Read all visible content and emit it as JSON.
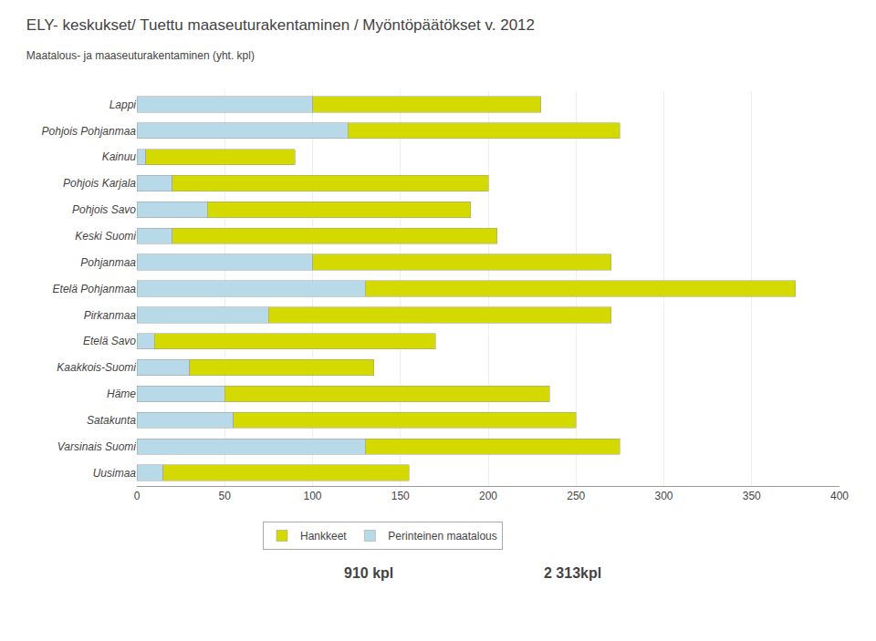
{
  "chart_data": {
    "type": "bar",
    "orientation": "horizontal",
    "stacked": true,
    "title": "ELY- keskukset/ Tuettu maaseuturakentaminen / Myöntöpäätökset v. 2012",
    "subtitle": "Maatalous- ja maaseuturakentaminen (yht. kpl)",
    "categories": [
      "Lappi",
      "Pohjois Pohjanmaa",
      "Kainuu",
      "Pohjois Karjala",
      "Pohjois Savo",
      "Keski Suomi",
      "Pohjanmaa",
      "Etelä Pohjanmaa",
      "Pirkanmaa",
      "Etelä Savo",
      "Kaakkois-Suomi",
      "Häme",
      "Satakunta",
      "Varsinais Suomi",
      "Uusimaa"
    ],
    "series": [
      {
        "name": "Perinteinen maatalous",
        "color": "#b8d9e8",
        "values": [
          100,
          120,
          5,
          20,
          40,
          20,
          100,
          130,
          75,
          10,
          30,
          50,
          55,
          130,
          15
        ]
      },
      {
        "name": "Hankkeet",
        "color": "#d4d900",
        "values": [
          130,
          155,
          85,
          180,
          150,
          185,
          170,
          245,
          195,
          160,
          105,
          185,
          195,
          145,
          140
        ]
      }
    ],
    "xlim": [
      0,
      400
    ],
    "xticks": [
      0,
      50,
      100,
      150,
      200,
      250,
      300,
      350,
      400
    ],
    "grid": true,
    "legend": "bottom",
    "annotations": [
      "910 kpl",
      "2 313kpl"
    ]
  }
}
